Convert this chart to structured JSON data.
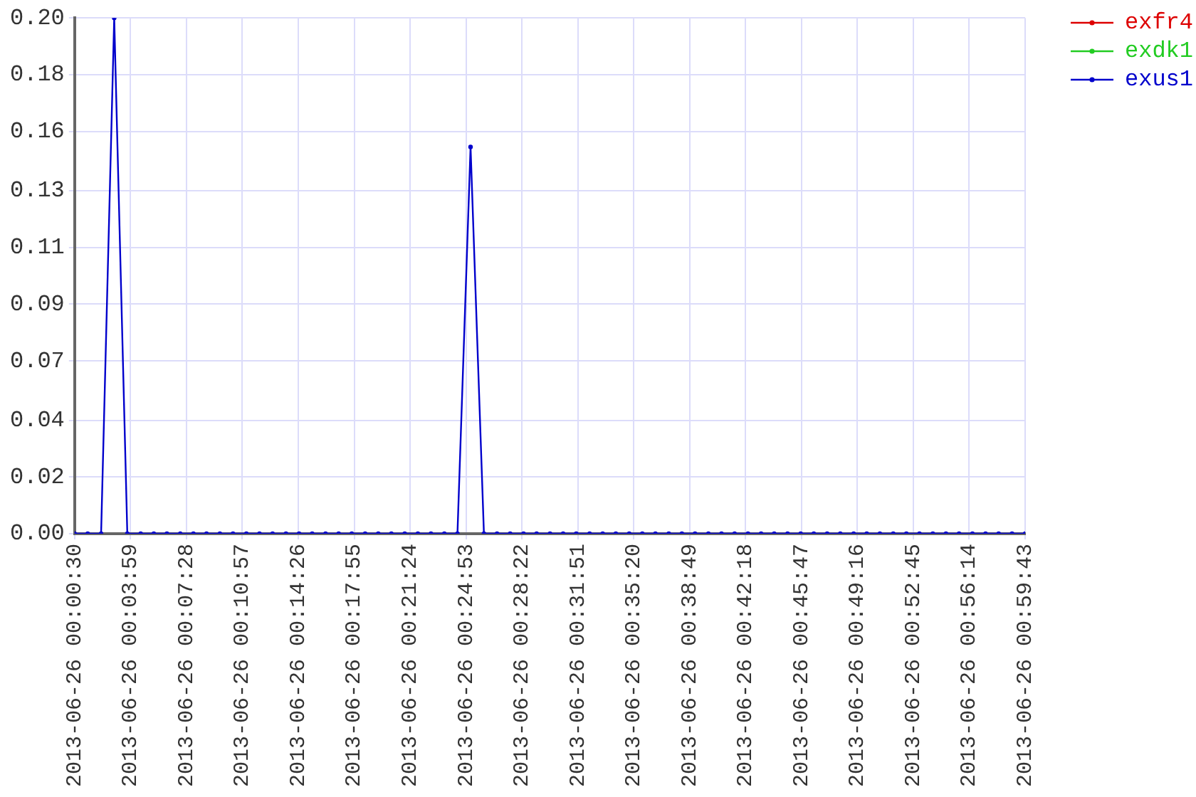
{
  "chart_data": {
    "type": "line",
    "x": [
      "2013-06-26T00:00:30",
      "2013-06-26T00:01:19",
      "2013-06-26T00:02:09",
      "2013-06-26T00:02:58",
      "2013-06-26T00:03:47",
      "2013-06-26T00:04:37",
      "2013-06-26T00:05:26",
      "2013-06-26T00:06:15",
      "2013-06-26T00:07:05",
      "2013-06-26T00:07:54",
      "2013-06-26T00:08:43",
      "2013-06-26T00:09:33",
      "2013-06-26T00:10:22",
      "2013-06-26T00:11:12",
      "2013-06-26T00:12:01",
      "2013-06-26T00:12:50",
      "2013-06-26T00:13:40",
      "2013-06-26T00:14:29",
      "2013-06-26T00:15:18",
      "2013-06-26T00:16:08",
      "2013-06-26T00:16:57",
      "2013-06-26T00:17:46",
      "2013-06-26T00:18:36",
      "2013-06-26T00:19:25",
      "2013-06-26T00:20:14",
      "2013-06-26T00:21:04",
      "2013-06-26T00:21:53",
      "2013-06-26T00:22:42",
      "2013-06-26T00:23:32",
      "2013-06-26T00:24:21",
      "2013-06-26T00:25:10",
      "2013-06-26T00:26:00",
      "2013-06-26T00:26:49",
      "2013-06-26T00:27:38",
      "2013-06-26T00:28:28",
      "2013-06-26T00:29:17",
      "2013-06-26T00:30:07",
      "2013-06-26T00:30:56",
      "2013-06-26T00:31:45",
      "2013-06-26T00:32:35",
      "2013-06-26T00:33:24",
      "2013-06-26T00:34:13",
      "2013-06-26T00:35:03",
      "2013-06-26T00:35:52",
      "2013-06-26T00:36:41",
      "2013-06-26T00:37:31",
      "2013-06-26T00:38:20",
      "2013-06-26T00:39:09",
      "2013-06-26T00:39:59",
      "2013-06-26T00:40:48",
      "2013-06-26T00:41:37",
      "2013-06-26T00:42:27",
      "2013-06-26T00:43:16",
      "2013-06-26T00:44:05",
      "2013-06-26T00:44:55",
      "2013-06-26T00:45:44",
      "2013-06-26T00:46:33",
      "2013-06-26T00:47:23",
      "2013-06-26T00:48:12",
      "2013-06-26T00:49:02",
      "2013-06-26T00:49:51",
      "2013-06-26T00:50:40",
      "2013-06-26T00:51:30",
      "2013-06-26T00:52:19",
      "2013-06-26T00:53:08",
      "2013-06-26T00:53:58",
      "2013-06-26T00:54:47",
      "2013-06-26T00:55:36",
      "2013-06-26T00:56:26",
      "2013-06-26T00:57:15",
      "2013-06-26T00:58:04",
      "2013-06-26T00:58:54",
      "2013-06-26T00:59:43"
    ],
    "series": [
      {
        "name": "exfr4",
        "color": "#dd0000",
        "values": [
          null,
          null,
          null,
          null,
          null,
          null,
          null,
          null,
          null,
          null,
          null,
          null,
          null,
          null,
          null,
          null,
          null,
          null,
          null,
          null,
          null,
          null,
          null,
          null,
          null,
          null,
          null,
          null,
          null,
          null,
          null,
          null,
          null,
          null,
          null,
          null,
          null,
          null,
          null,
          null,
          null,
          null,
          null,
          null,
          null,
          null,
          null,
          null,
          null,
          null,
          null,
          null,
          null,
          null,
          null,
          null,
          null,
          null,
          null,
          null,
          null,
          null,
          null,
          null,
          null,
          null,
          null,
          null,
          null,
          null,
          null,
          null,
          null
        ]
      },
      {
        "name": "exdk1",
        "color": "#22cc22",
        "values": [
          null,
          null,
          null,
          null,
          null,
          null,
          null,
          null,
          null,
          null,
          null,
          null,
          null,
          null,
          null,
          null,
          null,
          null,
          null,
          null,
          null,
          null,
          null,
          null,
          null,
          null,
          null,
          null,
          null,
          null,
          null,
          null,
          null,
          null,
          null,
          null,
          null,
          null,
          null,
          null,
          null,
          null,
          null,
          null,
          null,
          null,
          null,
          null,
          null,
          null,
          null,
          null,
          null,
          null,
          null,
          null,
          null,
          null,
          null,
          null,
          null,
          null,
          null,
          null,
          null,
          null,
          null,
          null,
          null,
          null,
          null,
          null,
          null
        ]
      },
      {
        "name": "exus1",
        "color": "#0000cc",
        "values": [
          0,
          0,
          0,
          0.2,
          0,
          0,
          0,
          0,
          0,
          0,
          0,
          0,
          0,
          0,
          0,
          0,
          0,
          0,
          0,
          0,
          0,
          0,
          0,
          0,
          0,
          0,
          0,
          0,
          0,
          0,
          0.15,
          0,
          0,
          0,
          0,
          0,
          0,
          0,
          0,
          0,
          0,
          0,
          0,
          0,
          0,
          0,
          0,
          0,
          0,
          0,
          0,
          0,
          0,
          0,
          0,
          0,
          0,
          0,
          0,
          0,
          0,
          0,
          0,
          0,
          0,
          0,
          0,
          0,
          0,
          0,
          0,
          0,
          0
        ]
      }
    ],
    "xlim": [
      "2013-06-26T00:00:30",
      "2013-06-26T00:59:43"
    ],
    "xticks": [
      {
        "value": "2013-06-26T00:00:30",
        "label": "2013-06-26 00:00:30"
      },
      {
        "value": "2013-06-26T00:03:59",
        "label": "2013-06-26 00:03:59"
      },
      {
        "value": "2013-06-26T00:07:28",
        "label": "2013-06-26 00:07:28"
      },
      {
        "value": "2013-06-26T00:10:57",
        "label": "2013-06-26 00:10:57"
      },
      {
        "value": "2013-06-26T00:14:26",
        "label": "2013-06-26 00:14:26"
      },
      {
        "value": "2013-06-26T00:17:55",
        "label": "2013-06-26 00:17:55"
      },
      {
        "value": "2013-06-26T00:21:24",
        "label": "2013-06-26 00:21:24"
      },
      {
        "value": "2013-06-26T00:24:53",
        "label": "2013-06-26 00:24:53"
      },
      {
        "value": "2013-06-26T00:28:22",
        "label": "2013-06-26 00:28:22"
      },
      {
        "value": "2013-06-26T00:31:51",
        "label": "2013-06-26 00:31:51"
      },
      {
        "value": "2013-06-26T00:35:20",
        "label": "2013-06-26 00:35:20"
      },
      {
        "value": "2013-06-26T00:38:49",
        "label": "2013-06-26 00:38:49"
      },
      {
        "value": "2013-06-26T00:42:18",
        "label": "2013-06-26 00:42:18"
      },
      {
        "value": "2013-06-26T00:45:47",
        "label": "2013-06-26 00:45:47"
      },
      {
        "value": "2013-06-26T00:49:16",
        "label": "2013-06-26 00:49:16"
      },
      {
        "value": "2013-06-26T00:52:45",
        "label": "2013-06-26 00:52:45"
      },
      {
        "value": "2013-06-26T00:56:14",
        "label": "2013-06-26 00:56:14"
      },
      {
        "value": "2013-06-26T00:59:43",
        "label": "2013-06-26 00:59:43"
      }
    ],
    "ylim": [
      0,
      0.2
    ],
    "yticks": [
      {
        "value": 0,
        "label": "0.00"
      },
      {
        "value": 0.022,
        "label": "0.02"
      },
      {
        "value": 0.044,
        "label": "0.04"
      },
      {
        "value": 0.067,
        "label": "0.07"
      },
      {
        "value": 0.089,
        "label": "0.09"
      },
      {
        "value": 0.111,
        "label": "0.11"
      },
      {
        "value": 0.133,
        "label": "0.13"
      },
      {
        "value": 0.156,
        "label": "0.16"
      },
      {
        "value": 0.178,
        "label": "0.18"
      },
      {
        "value": 0.2,
        "label": "0.20"
      }
    ],
    "grid": true,
    "legend": "top right",
    "marker": "circle",
    "line_style": "solid"
  }
}
